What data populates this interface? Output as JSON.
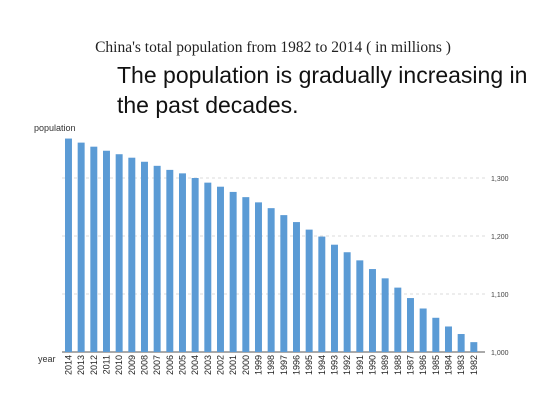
{
  "chart_data": {
    "type": "bar",
    "title": "China's total population from 1982 to 2014 ( in millions )",
    "subtitle": "The population is gradually increasing in the past decades.",
    "ylabel": "population",
    "xlabel": "year",
    "categories": [
      "2014",
      "2013",
      "2012",
      "2011",
      "2010",
      "2009",
      "2008",
      "2007",
      "2006",
      "2005",
      "2004",
      "2003",
      "2002",
      "2001",
      "2000",
      "1999",
      "1998",
      "1997",
      "1996",
      "1995",
      "1994",
      "1993",
      "1992",
      "1991",
      "1990",
      "1989",
      "1988",
      "1987",
      "1986",
      "1985",
      "1984",
      "1983",
      "1982"
    ],
    "values": [
      1368,
      1361,
      1354,
      1347,
      1341,
      1335,
      1328,
      1321,
      1314,
      1308,
      1300,
      1292,
      1285,
      1276,
      1267,
      1258,
      1248,
      1236,
      1224,
      1211,
      1199,
      1185,
      1172,
      1158,
      1143,
      1127,
      1111,
      1093,
      1075,
      1059,
      1044,
      1031,
      1017
    ],
    "yticks": [
      1000,
      1100,
      1200,
      1300
    ],
    "ytick_labels": [
      "1,000",
      "1,100",
      "1,200",
      "1,300"
    ],
    "ylim": [
      1000,
      1375
    ],
    "grid": true,
    "bar_color": "#5b9bd5"
  }
}
